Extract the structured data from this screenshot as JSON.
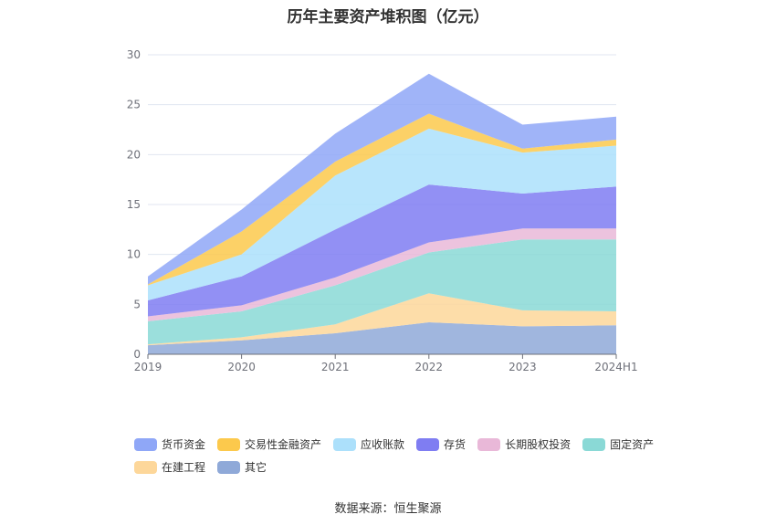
{
  "title": "历年主要资产堆积图（亿元）",
  "source": "数据来源：恒生聚源",
  "chart_data": {
    "type": "area",
    "stacked": true,
    "categories": [
      "2019",
      "2020",
      "2021",
      "2022",
      "2023",
      "2024H1"
    ],
    "ylim": [
      0,
      30
    ],
    "yticks": [
      0,
      5,
      10,
      15,
      20,
      25,
      30
    ],
    "grid": true,
    "legend_position": "bottom",
    "series": [
      {
        "name": "其它",
        "color": "#8fa9d8",
        "values": [
          0.9,
          1.4,
          2.1,
          3.2,
          2.8,
          2.9
        ]
      },
      {
        "name": "在建工程",
        "color": "#fdd79a",
        "values": [
          0.1,
          0.3,
          0.9,
          2.9,
          1.6,
          1.4
        ]
      },
      {
        "name": "固定资产",
        "color": "#8ad9d6",
        "values": [
          2.3,
          2.6,
          3.9,
          4.1,
          7.1,
          7.2
        ]
      },
      {
        "name": "长期股权投资",
        "color": "#e9b8d8",
        "values": [
          0.5,
          0.6,
          0.8,
          1.0,
          1.1,
          1.1
        ]
      },
      {
        "name": "存货",
        "color": "#7f7df2",
        "values": [
          1.6,
          2.9,
          4.8,
          5.8,
          3.5,
          4.2
        ]
      },
      {
        "name": "应收账款",
        "color": "#ace0fb",
        "values": [
          1.5,
          2.2,
          5.4,
          5.6,
          4.1,
          4.1
        ]
      },
      {
        "name": "交易性金融资产",
        "color": "#fcc94c",
        "values": [
          0.1,
          2.3,
          1.4,
          1.5,
          0.4,
          0.6
        ]
      },
      {
        "name": "货币资金",
        "color": "#8fa7f7",
        "values": [
          0.8,
          2.2,
          2.8,
          4.0,
          2.4,
          2.3
        ]
      }
    ]
  },
  "legend_rows": [
    [
      "货币资金",
      "交易性金融资产",
      "应收账款",
      "存货",
      "长期股权投资",
      "固定资产"
    ],
    [
      "在建工程",
      "其它"
    ]
  ]
}
